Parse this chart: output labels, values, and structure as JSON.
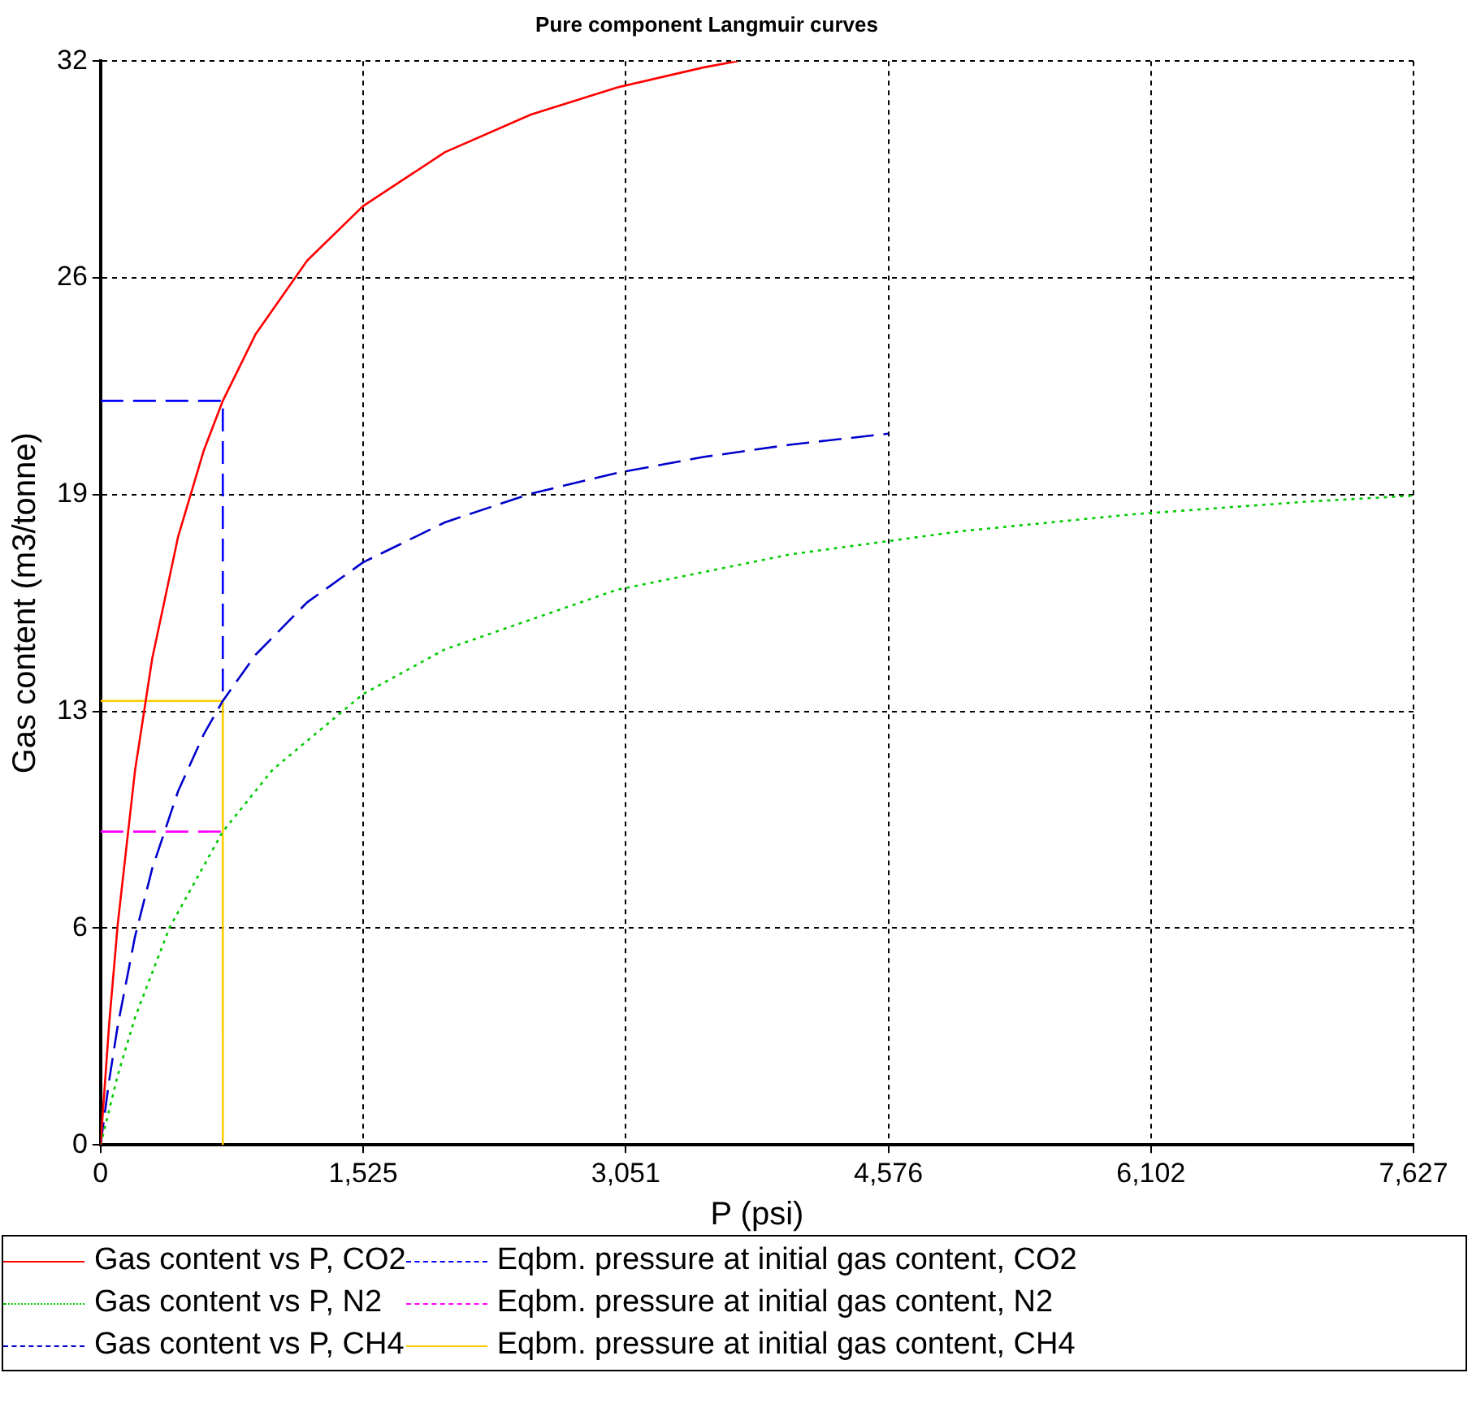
{
  "chart_data": {
    "type": "line",
    "title": "Pure component Langmuir curves",
    "xlabel": "P (psi)",
    "ylabel": "Gas content (m3/tonne)",
    "xlim": [
      0,
      7627
    ],
    "xticks": [
      0,
      {
        "value": 1525.4,
        "label": "1,525"
      },
      {
        "value": 3050.8,
        "label": "3,051"
      },
      {
        "value": 4576.2,
        "label": "4,576"
      },
      {
        "value": 6101.6,
        "label": "6,102"
      },
      {
        "value": 7627,
        "label": "7,627"
      }
    ],
    "ylim": [
      0,
      32
    ],
    "yticks": [
      0,
      {
        "value": 6.4,
        "label": "6"
      },
      {
        "value": 12.8,
        "label": "13"
      },
      {
        "value": 19.2,
        "label": "19"
      },
      {
        "value": 25.6,
        "label": "26"
      },
      32
    ],
    "grid": true,
    "legend": "bottom",
    "marker": "none",
    "series": [
      {
        "name": "Gas content vs P, CO2",
        "color": "#ff0000",
        "line_style": "solid",
        "x": [
          0,
          50,
          100,
          200,
          300,
          450,
          600,
          710,
          900,
          1200,
          1525,
          2000,
          2500,
          3000,
          3500,
          3700
        ],
        "values": [
          0,
          3.59,
          6.53,
          11.05,
          14.36,
          17.95,
          20.51,
          21.97,
          23.93,
          26.11,
          27.72,
          29.31,
          30.42,
          31.22,
          31.81,
          32
        ]
      },
      {
        "name": "Eqbm. pressure at initial gas content, CO2",
        "color": "#0000ff",
        "line_style": "dashed",
        "x": [
          0,
          710,
          710
        ],
        "values": [
          21.97,
          21.97,
          13.11
        ]
      },
      {
        "name": "Gas content vs P, N2",
        "color": "#00cc00",
        "line_style": "dotted",
        "x": [
          0,
          100,
          200,
          400,
          710,
          1000,
          1525,
          2000,
          3000,
          4000,
          5000,
          6000,
          7000,
          7627
        ],
        "values": [
          0,
          2.06,
          3.76,
          6.41,
          9.25,
          11.08,
          13.31,
          14.63,
          16.39,
          17.43,
          18.12,
          18.62,
          18.99,
          19.17
        ]
      },
      {
        "name": "Eqbm. pressure at initial gas content, N2",
        "color": "#ff00ff",
        "line_style": "dashed",
        "x": [
          0,
          710
        ],
        "values": [
          9.25,
          9.25
        ]
      },
      {
        "name": "Gas content vs P, CH4",
        "color": "#0000cc",
        "line_style": "dashed",
        "x": [
          0,
          50,
          100,
          200,
          300,
          450,
          600,
          710,
          900,
          1200,
          1525,
          2000,
          2500,
          3000,
          3500,
          4000,
          4576
        ],
        "values": [
          0,
          1.91,
          3.53,
          6.15,
          8.16,
          10.44,
          12.13,
          13.11,
          14.47,
          16.02,
          17.2,
          18.38,
          19.23,
          19.84,
          20.31,
          20.67,
          21
        ]
      },
      {
        "name": "Eqbm. pressure at initial gas content, CH4",
        "color": "#ffcc00",
        "line_style": "solid",
        "x": [
          0,
          710,
          710
        ],
        "values": [
          13.11,
          13.11,
          0
        ]
      }
    ]
  }
}
